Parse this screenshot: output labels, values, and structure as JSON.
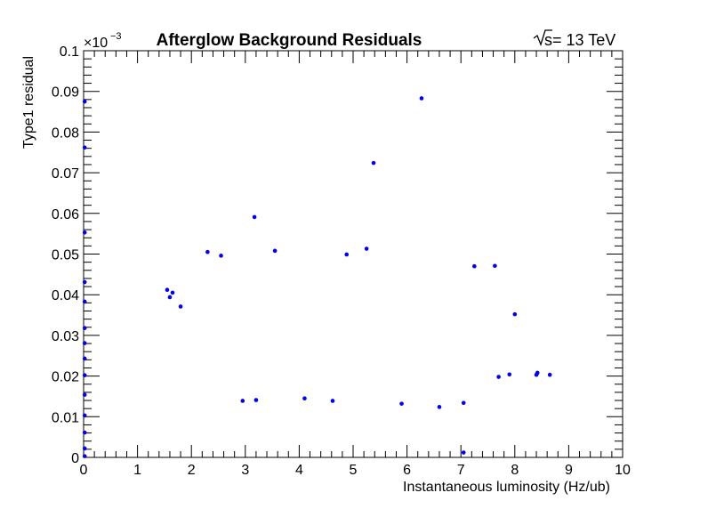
{
  "chart_data": {
    "type": "scatter",
    "title": "Afterglow Background Residuals",
    "energy_label": "√s = 13 TeV",
    "energy_symbol": "s",
    "energy_text": " = 13 TeV",
    "xlabel": "Instantaneous luminosity (Hz/ub)",
    "ylabel": "Type1 residual",
    "y_exponent_label": "×10",
    "y_exponent_power": "−3",
    "xlim": [
      0,
      10
    ],
    "ylim": [
      0,
      0.1
    ],
    "x_ticks": [
      0,
      1,
      2,
      3,
      4,
      5,
      6,
      7,
      8,
      9,
      10
    ],
    "y_ticks": [
      0,
      0.01,
      0.02,
      0.03,
      0.04,
      0.05,
      0.06,
      0.07,
      0.08,
      0.09,
      0.1
    ],
    "grid": false,
    "marker_color": "#0000ee",
    "series": [
      {
        "points": [
          [
            6.27,
            0.0883
          ],
          [
            5.38,
            0.0724
          ],
          [
            3.17,
            0.0591
          ],
          [
            4.88,
            0.0499
          ],
          [
            2.95,
            0.0139
          ],
          [
            3.2,
            0.0141
          ],
          [
            4.1,
            0.0145
          ],
          [
            4.62,
            0.0139
          ],
          [
            5.9,
            0.0132
          ],
          [
            6.6,
            0.0124
          ],
          [
            7.05,
            0.0134
          ],
          [
            7.05,
            0.0012
          ],
          [
            8.65,
            0.0203
          ],
          [
            8.42,
            0.0208
          ],
          [
            8.4,
            0.0203
          ],
          [
            7.7,
            0.0198
          ],
          [
            7.9,
            0.0204
          ],
          [
            5.25,
            0.0513
          ],
          [
            2.3,
            0.0505
          ],
          [
            2.55,
            0.0496
          ],
          [
            3.55,
            0.0508
          ],
          [
            1.55,
            0.0412
          ],
          [
            1.65,
            0.0405
          ],
          [
            1.6,
            0.0394
          ],
          [
            1.8,
            0.0371
          ],
          [
            7.63,
            0.0471
          ],
          [
            7.25,
            0.047
          ],
          [
            8.0,
            0.0352
          ],
          [
            0.02,
            0.0875
          ],
          [
            0.02,
            0.0762
          ],
          [
            0.02,
            0.0553
          ],
          [
            0.02,
            0.0431
          ],
          [
            0.02,
            0.0383
          ],
          [
            0.02,
            0.0318
          ],
          [
            0.02,
            0.0281
          ],
          [
            0.02,
            0.0243
          ],
          [
            0.02,
            0.0202
          ],
          [
            0.02,
            0.0154
          ],
          [
            0.02,
            0.0103
          ],
          [
            0.02,
            0.0061
          ],
          [
            0.02,
            0.0022
          ],
          [
            0.02,
            0.0003
          ]
        ]
      }
    ]
  }
}
